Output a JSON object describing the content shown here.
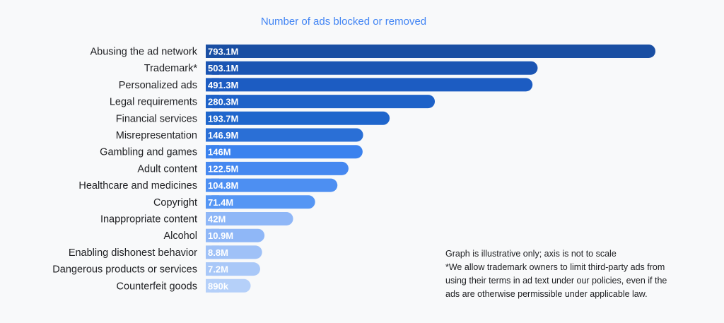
{
  "chart_data": {
    "type": "bar",
    "orientation": "horizontal",
    "title": "Number of ads blocked or removed",
    "categories": [
      "Abusing the ad network",
      "Trademark*",
      "Personalized ads",
      "Legal requirements",
      "Financial services",
      "Misrepresentation",
      "Gambling and games",
      "Adult content",
      "Healthcare and medicines",
      "Copyright",
      "Inappropriate content",
      "Alcohol",
      "Enabling dishonest behavior",
      "Dangerous products or services",
      "Counterfeit goods"
    ],
    "values": [
      793.1,
      503.1,
      491.3,
      280.3,
      193.7,
      146.9,
      146,
      122.5,
      104.8,
      71.4,
      42,
      10.9,
      8.8,
      7.2,
      0.89
    ],
    "value_unit": "millions",
    "data_labels": [
      "793.1M",
      "503.1M",
      "491.3M",
      "280.3M",
      "193.7M",
      "146.9M",
      "146M",
      "122.5M",
      "104.8M",
      "71.4M",
      "42M",
      "10.9M",
      "8.8M",
      "7.2M",
      "890k"
    ],
    "bar_colors": [
      "#1a4fa3",
      "#1b55b3",
      "#1c5cc2",
      "#1e62c8",
      "#1f66cc",
      "#2a6fd6",
      "#3b82ee",
      "#4688f0",
      "#4d8ff2",
      "#5596f4",
      "#8fb7f7",
      "#8fb7f7",
      "#9fc1f7",
      "#a9c8f8",
      "#b5d0f9"
    ],
    "xlabel": "",
    "ylabel": "",
    "grid": false,
    "legend": "none"
  },
  "notes": {
    "line1": "Graph is illustrative only; axis is not to scale",
    "line2": "*We allow trademark owners to limit third-party ads from",
    "line3": "using their terms in ad text under our policies, even if the",
    "line4": "ads are otherwise permissible under applicable law."
  }
}
